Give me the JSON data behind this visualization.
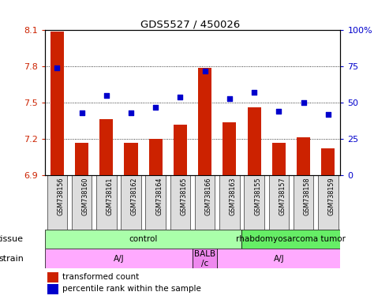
{
  "title": "GDS5527 / 450026",
  "samples": [
    "GSM738156",
    "GSM738160",
    "GSM738161",
    "GSM738162",
    "GSM738164",
    "GSM738165",
    "GSM738166",
    "GSM738163",
    "GSM738155",
    "GSM738157",
    "GSM738158",
    "GSM738159"
  ],
  "bar_values": [
    8.09,
    7.17,
    7.36,
    7.17,
    7.2,
    7.32,
    7.79,
    7.34,
    7.46,
    7.17,
    7.21,
    7.12
  ],
  "percentile_values": [
    74,
    43,
    55,
    43,
    47,
    54,
    72,
    53,
    57,
    44,
    50,
    42
  ],
  "y_min": 6.9,
  "y_max": 8.1,
  "y_ticks": [
    6.9,
    7.2,
    7.5,
    7.8,
    8.1
  ],
  "y_tick_labels": [
    "6.9",
    "7.2",
    "7.5",
    "7.8",
    "8.1"
  ],
  "y2_ticks": [
    0,
    25,
    50,
    75,
    100
  ],
  "y2_tick_labels": [
    "0",
    "25",
    "50",
    "75",
    "100%"
  ],
  "bar_color": "#cc2200",
  "dot_color": "#0000cc",
  "tissue_groups": [
    {
      "label": "control",
      "start": 0,
      "end": 8,
      "color": "#aaffaa"
    },
    {
      "label": "rhabdomyosarcoma tumor",
      "start": 8,
      "end": 12,
      "color": "#66ee66"
    }
  ],
  "strain_groups": [
    {
      "label": "A/J",
      "start": 0,
      "end": 6,
      "color": "#ffaaff"
    },
    {
      "label": "BALB\n/c",
      "start": 6,
      "end": 7,
      "color": "#ee88ee"
    },
    {
      "label": "A/J",
      "start": 7,
      "end": 12,
      "color": "#ffaaff"
    }
  ],
  "tissue_label": "tissue",
  "strain_label": "strain",
  "legend_bar_label": "transformed count",
  "legend_dot_label": "percentile rank within the sample",
  "bg_color": "#ffffff",
  "tick_label_color_left": "#cc2200",
  "tick_label_color_right": "#0000cc",
  "sample_box_color": "#dddddd",
  "grid_yticks": [
    7.2,
    7.5,
    7.8
  ]
}
